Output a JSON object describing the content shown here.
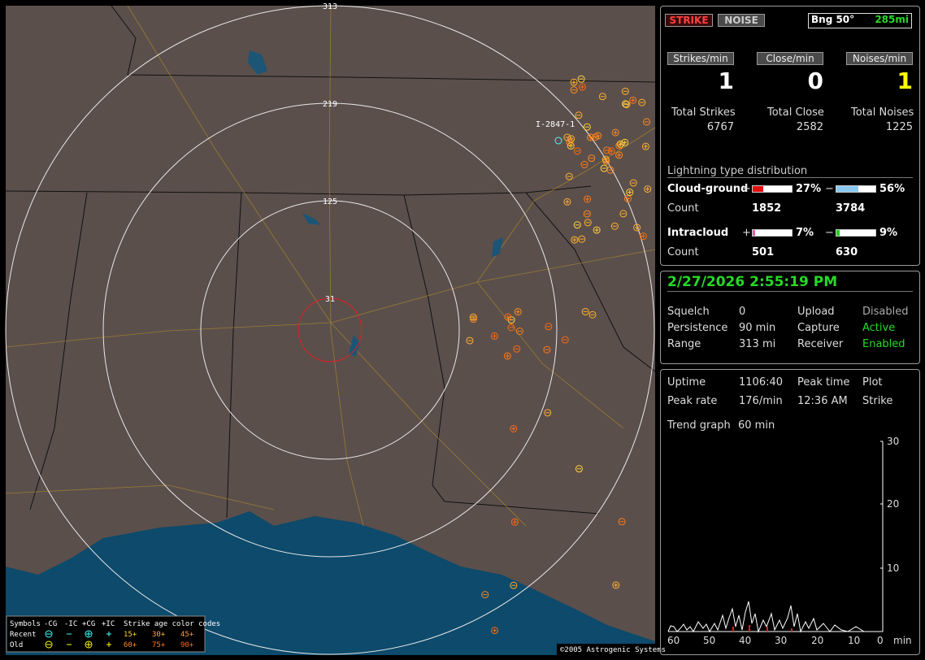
{
  "map": {
    "ring_labels": [
      "313",
      "219",
      "125",
      "31"
    ],
    "station_label": "I-2847-1",
    "copyright": "©2005 Astrogenic Systems",
    "legend": {
      "header": [
        "Symbols",
        "-CG",
        "-IC",
        "+CG",
        "+IC",
        "Strike age color codes"
      ],
      "recent": {
        "label": "Recent",
        "ages": [
          "15+",
          "30+",
          "45+"
        ]
      },
      "old": {
        "label": "Old",
        "ages": [
          "60+",
          "75+",
          "90+"
        ]
      }
    }
  },
  "header": {
    "strike_button": "STRIKE",
    "noise_button": "NOISE",
    "bearing": "Bng 50°",
    "distance": "285mi"
  },
  "rates": [
    {
      "label": "Strikes/min",
      "value": "1"
    },
    {
      "label": "Close/min",
      "value": "0"
    },
    {
      "label": "Noises/min",
      "value": "1"
    }
  ],
  "totals": [
    {
      "label": "Total Strikes",
      "value": "6767"
    },
    {
      "label": "Total Close",
      "value": "2582"
    },
    {
      "label": "Total Noises",
      "value": "1225"
    }
  ],
  "distribution": {
    "title": "Lightning type distribution",
    "rows": [
      {
        "label": "Cloud-ground",
        "plus": "+",
        "plus_pct": "27%",
        "minus": "−",
        "minus_pct": "56%",
        "count_label": "Count",
        "plus_count": "1852",
        "minus_count": "3784"
      },
      {
        "label": "Intracloud",
        "plus": "+",
        "plus_pct": "7%",
        "minus": "−",
        "minus_pct": "9%",
        "count_label": "Count",
        "plus_count": "501",
        "minus_count": "630"
      }
    ]
  },
  "datetime": "2/27/2026 2:55:19 PM",
  "status": [
    [
      "Squelch",
      "0",
      "Upload",
      "Disabled"
    ],
    [
      "Persistence",
      "90 min",
      "Capture",
      "Active"
    ],
    [
      "Range",
      "313 mi",
      "Receiver",
      "Enabled"
    ]
  ],
  "stats": [
    [
      "Uptime",
      "1106:40",
      "Peak time",
      "Plot"
    ],
    [
      "Peak rate",
      "176/min",
      "12:36 AM",
      "Strike"
    ]
  ],
  "trend": {
    "label": "Trend graph",
    "value": "60 min"
  },
  "graph": {
    "y_labels": [
      "30",
      "20",
      "10"
    ],
    "x_labels": [
      "60",
      "50",
      "40",
      "30",
      "20",
      "10",
      "0"
    ],
    "unit": "min"
  }
}
